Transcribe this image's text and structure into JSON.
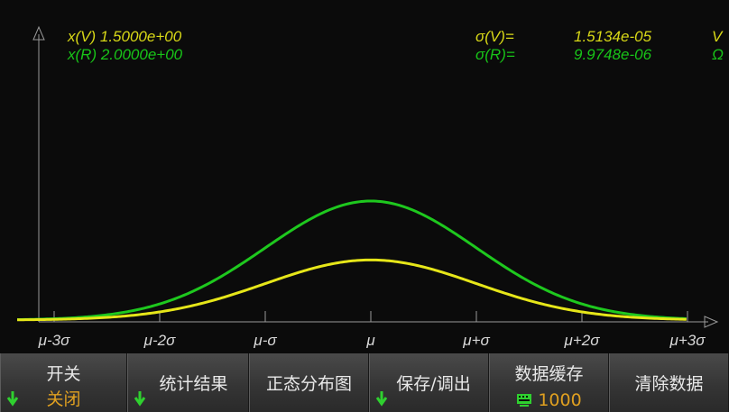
{
  "readouts": {
    "x_v": "x(V) 1.5000e+00",
    "x_r": "x(R) 2.0000e+00",
    "sigma_v_label": "σ(V)=",
    "sigma_v_value": "1.5134e-05",
    "sigma_v_unit": "V",
    "sigma_r_label": "σ(R)=",
    "sigma_r_value": "9.9748e-06",
    "sigma_r_unit": "Ω"
  },
  "chart_data": {
    "type": "line",
    "xlabel": "",
    "ylabel": "",
    "tick_labels": [
      "μ-3σ",
      "μ-2σ",
      "μ-σ",
      "μ",
      "μ+σ",
      "μ+2σ",
      "μ+3σ"
    ],
    "x": [
      -3,
      -2,
      -1,
      0,
      1,
      2,
      3
    ],
    "xlim": [
      -3.35,
      3
    ],
    "grid": false,
    "series": [
      {
        "name": "R",
        "color": "#1ec81e",
        "distribution": "normal",
        "peak_relative": 1.0
      },
      {
        "name": "V",
        "color": "#e6e619",
        "distribution": "normal",
        "peak_relative": 0.505
      }
    ]
  },
  "softkeys": [
    {
      "top": "开关",
      "bottom": "关闭",
      "arrow": true
    },
    {
      "label": "统计结果",
      "arrow": true
    },
    {
      "label": "正态分布图",
      "arrow": false
    },
    {
      "label": "保存/调出",
      "arrow": true
    },
    {
      "top": "数据缓存",
      "bottom": "1000",
      "icon": "keypad-icon"
    },
    {
      "label": "清除数据",
      "arrow": false
    }
  ],
  "colors": {
    "axis": "#9a9a9a",
    "background": "#0b0b0b",
    "accent": "#e0a020"
  }
}
